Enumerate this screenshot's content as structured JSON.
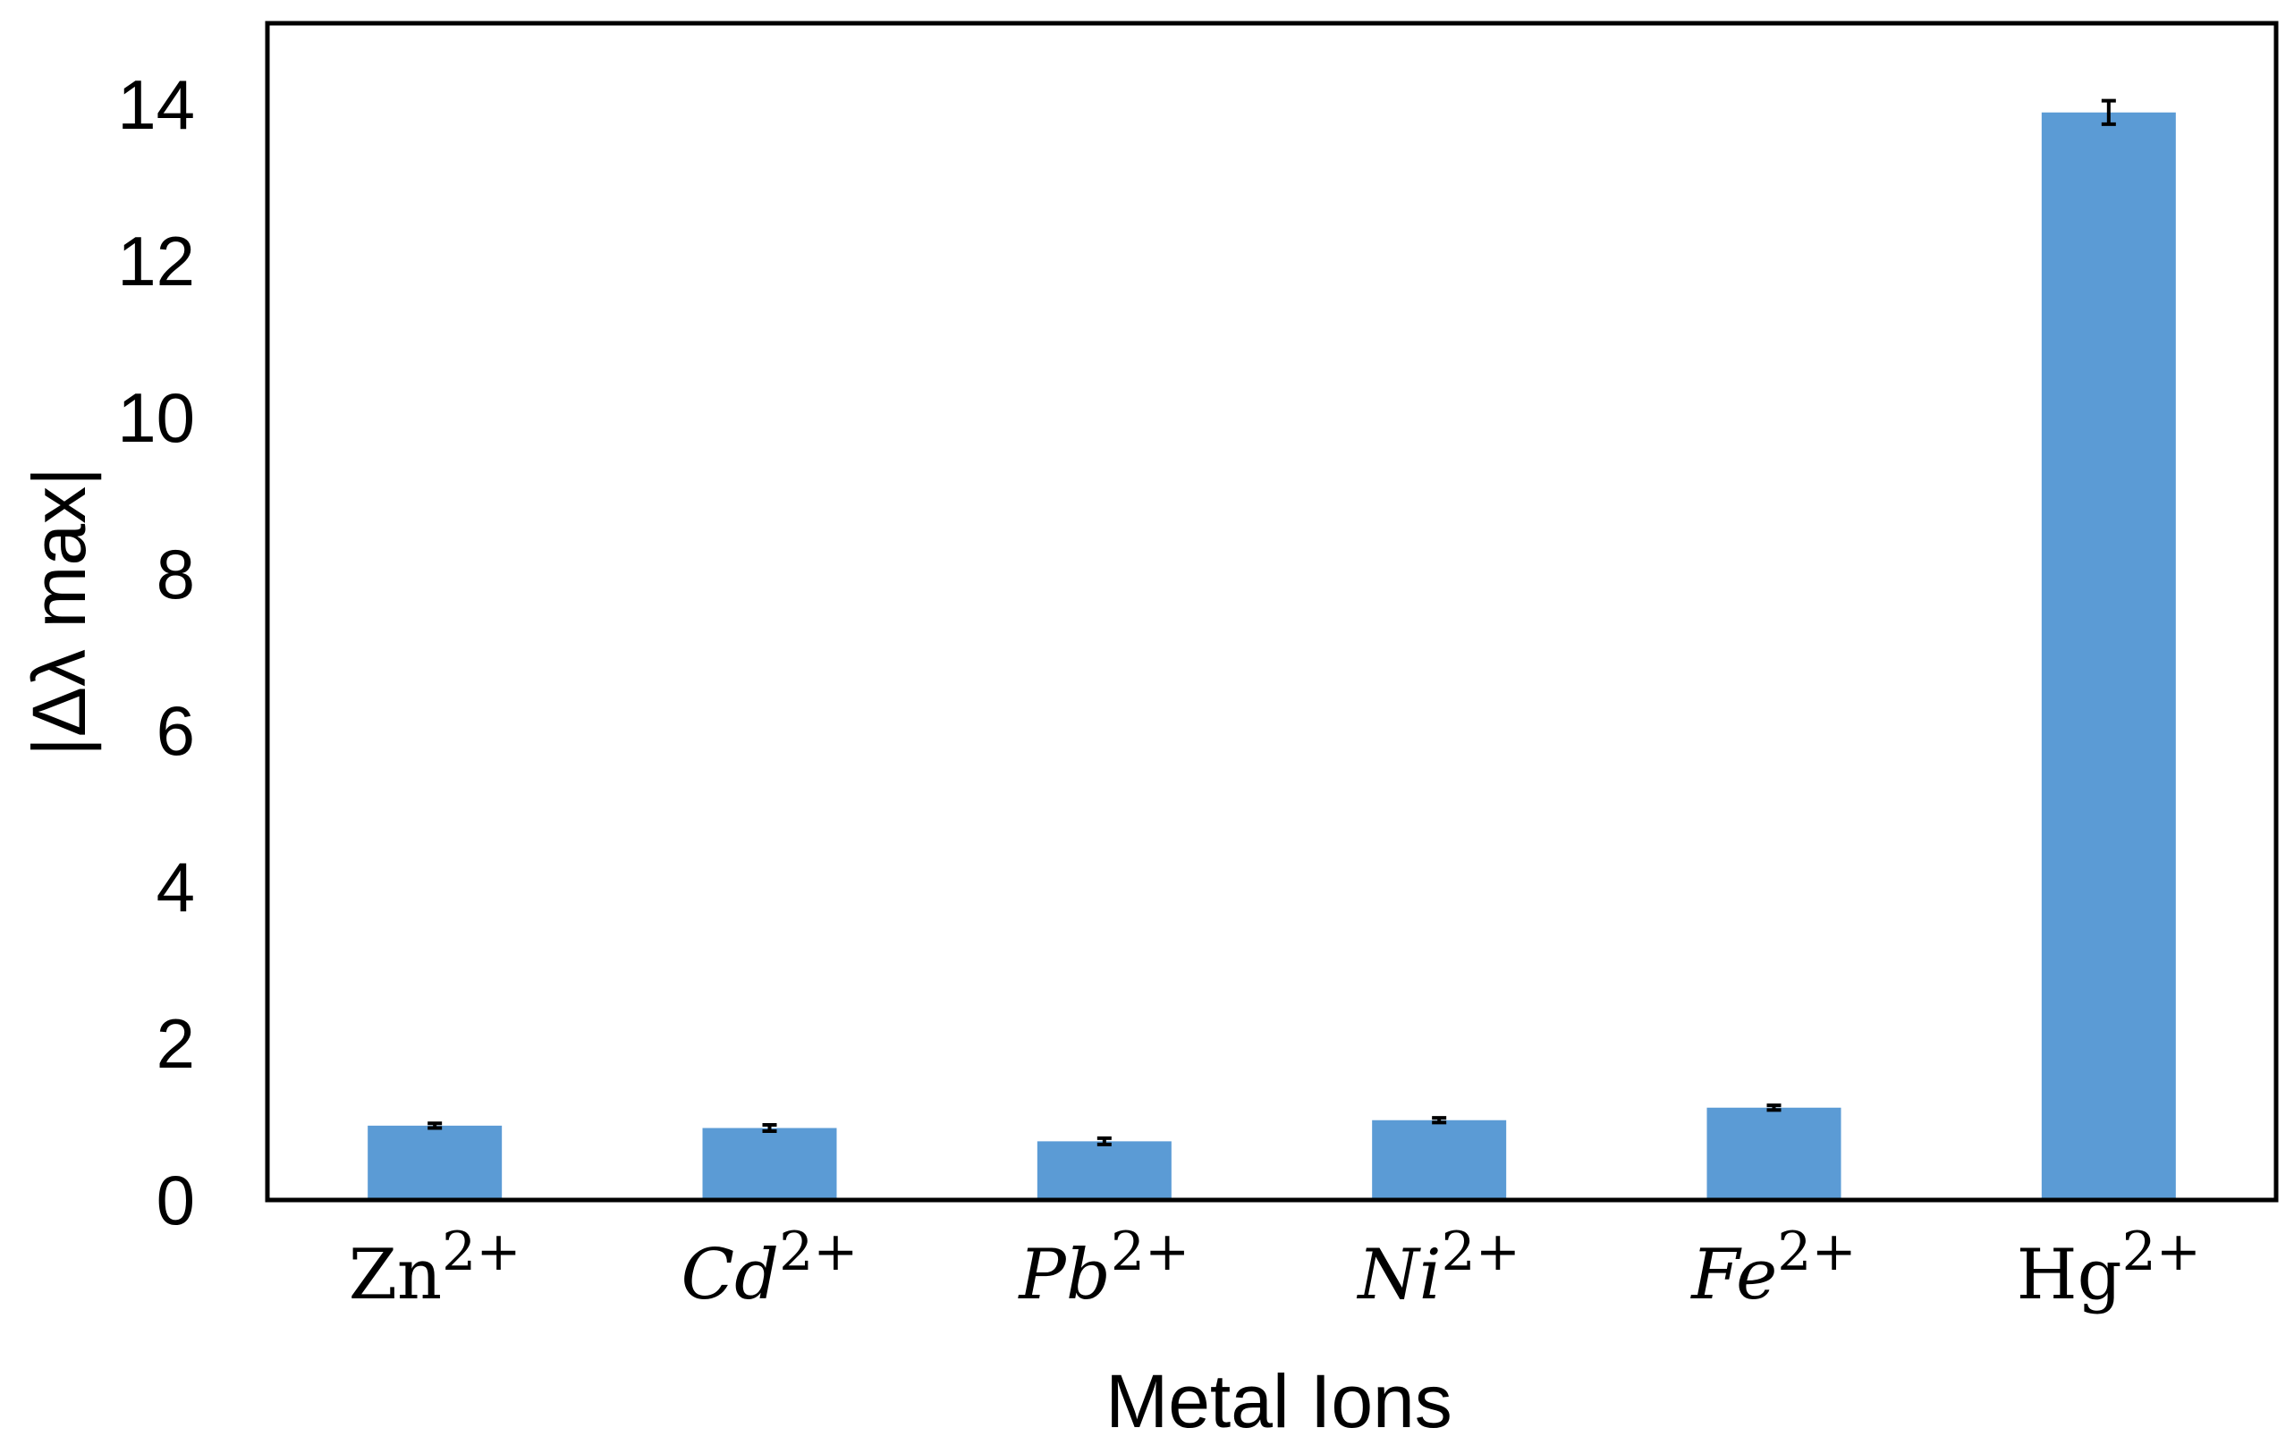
{
  "chart_data": {
    "type": "bar",
    "categories": [
      {
        "base": "Zn",
        "sup": "2+",
        "italic": false
      },
      {
        "base": "Cd",
        "sup": "2+",
        "italic": true
      },
      {
        "base": "Pb",
        "sup": "2+",
        "italic": true
      },
      {
        "base": "Ni",
        "sup": "2+",
        "italic": true
      },
      {
        "base": "Fe",
        "sup": "2+",
        "italic": true
      },
      {
        "base": "Hg",
        "sup": "2+",
        "italic": false
      }
    ],
    "values": [
      0.95,
      0.92,
      0.75,
      1.02,
      1.18,
      13.9
    ],
    "errors": [
      0.03,
      0.04,
      0.04,
      0.03,
      0.03,
      0.15
    ],
    "xlabel": "Metal Ions",
    "ylabel": "|Δλ max|",
    "ylim": [
      0,
      15
    ],
    "yticks": [
      "0",
      "2",
      "4",
      "6",
      "8",
      "10",
      "12",
      "14"
    ],
    "bar_color": "#5b9bd5",
    "grid": false,
    "legend": "none"
  }
}
